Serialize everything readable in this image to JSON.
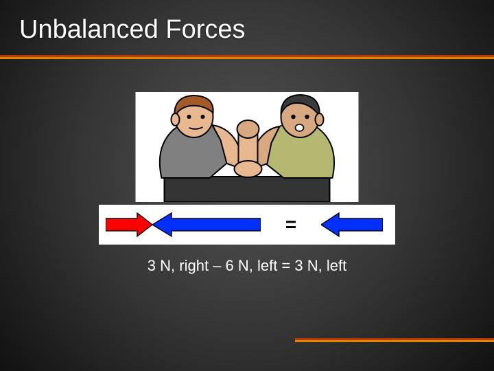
{
  "title": "Unbalanced Forces",
  "caption": "3 N, right – 6 N, left = 3 N, left",
  "equals_sign": "=",
  "rule": {
    "color_top": "#b23c00",
    "color_bot": "#e08600"
  },
  "arrows": {
    "right_small": {
      "direction": "right",
      "length": 68,
      "shaft_h": 18,
      "head_w": 22,
      "head_h": 34,
      "fill": "#ff0000",
      "stroke": "#000000"
    },
    "left_big": {
      "direction": "left",
      "length": 158,
      "shaft_h": 18,
      "head_w": 28,
      "head_h": 34,
      "fill": "#0030ff",
      "stroke": "#000000"
    },
    "result": {
      "direction": "left",
      "length": 90,
      "shaft_h": 18,
      "head_w": 26,
      "head_h": 34,
      "fill": "#0030ff",
      "stroke": "#000000"
    },
    "stroke_w": 1.4
  },
  "illustration": {
    "bg": "#ffffff",
    "outline": "#000000",
    "table_fill": "#333333",
    "skin_a": "#e8b890",
    "skin_b": "#d8a880",
    "shirt_a": "#808080",
    "shirt_b": "#b5b870",
    "hair_a": "#a55a2a",
    "hair_b": "#3a3a3a"
  }
}
